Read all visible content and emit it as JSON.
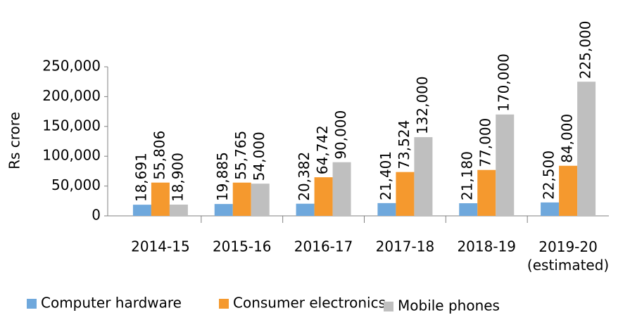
{
  "chart_data": {
    "type": "bar",
    "y_label": "Rs crore",
    "categories": [
      "2014-15",
      "2015-16",
      "2016-17",
      "2017-18",
      "2018-19",
      "2019-20\n(estimated)"
    ],
    "series": [
      {
        "name": "Computer hardware",
        "color": "#6fa8dc",
        "values": [
          18691,
          19885,
          20382,
          21401,
          21180,
          22500
        ],
        "value_labels": [
          "18,691",
          "19,885",
          "20,382",
          "21,401",
          "21,180",
          "22,500"
        ]
      },
      {
        "name": "Consumer electronics",
        "color": "#f5992e",
        "values": [
          55806,
          55765,
          64742,
          73524,
          77000,
          84000
        ],
        "value_labels": [
          "55,806",
          "55,765",
          "64,742",
          "73,524",
          "77,000",
          "84,000"
        ]
      },
      {
        "name": "Mobile phones",
        "color": "#bfbfbf",
        "values": [
          18900,
          54000,
          90000,
          132000,
          170000,
          225000
        ],
        "value_labels": [
          "18,900",
          "54,000",
          "90,000",
          "132,000",
          "170,000",
          "225,000"
        ]
      }
    ],
    "ylim": [
      0,
      250000
    ],
    "yticks": [
      0,
      {
        "value": 50000,
        "label": "50,000"
      },
      {
        "value": 100000,
        "label": "100,000"
      },
      {
        "value": 150000,
        "label": "150,000"
      },
      {
        "value": 200000,
        "label": "200,000"
      },
      {
        "value": 250000,
        "label": "250,000"
      }
    ],
    "grid": false,
    "legend": "bottom"
  }
}
